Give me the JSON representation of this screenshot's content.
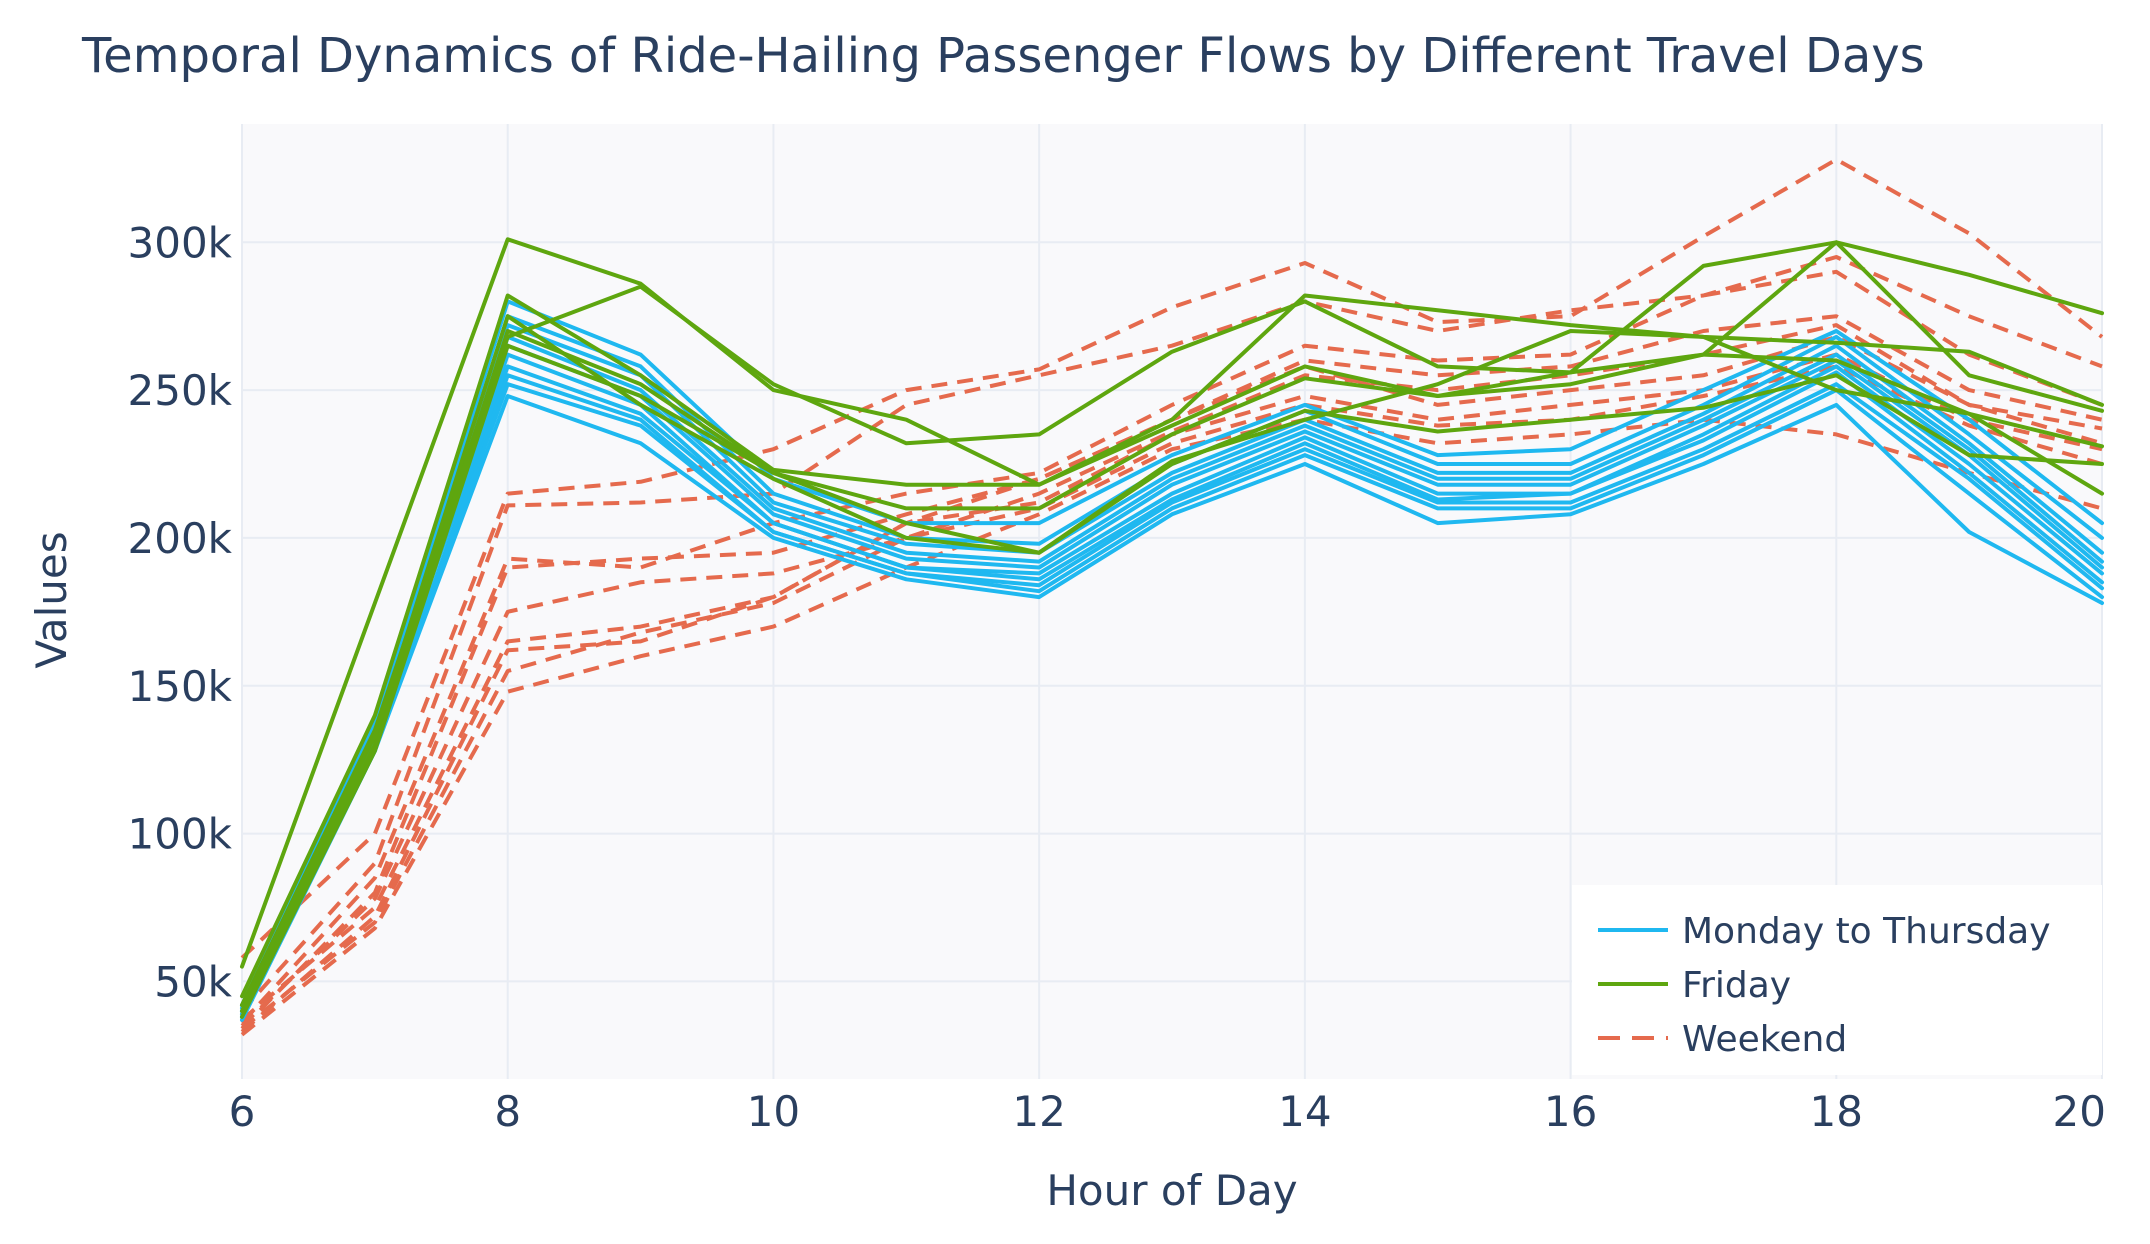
{
  "chart_data": {
    "type": "line",
    "title": "Temporal Dynamics of Ride-Hailing Passenger Flows by Different Travel Days",
    "xlabel": "Hour of Day",
    "ylabel": "Values",
    "xlim": [
      6,
      20
    ],
    "ylim": [
      17000,
      340000
    ],
    "grid": true,
    "legend_position": "bottom-right",
    "x_ticks": [
      6,
      8,
      10,
      12,
      14,
      16,
      18,
      20
    ],
    "x_tick_labels": [
      "6",
      "8",
      "10",
      "12",
      "14",
      "16",
      "18",
      "20"
    ],
    "y_ticks": [
      50000,
      100000,
      150000,
      200000,
      250000,
      300000
    ],
    "y_tick_labels": [
      "50k",
      "100k",
      "150k",
      "200k",
      "250k",
      "300k"
    ],
    "x": [
      6,
      7,
      8,
      9,
      10,
      11,
      12,
      13,
      14,
      15,
      16,
      17,
      18,
      19,
      20
    ],
    "groups": [
      {
        "name": "Monday to Thursday",
        "color": "#1fb8f0",
        "dash": "solid",
        "series": [
          [
            40000,
            135000,
            280000,
            262000,
            220000,
            205000,
            205000,
            228000,
            245000,
            228000,
            230000,
            250000,
            270000,
            240000,
            205000
          ],
          [
            38000,
            130000,
            275000,
            258000,
            215000,
            200000,
            198000,
            225000,
            243000,
            225000,
            225000,
            245000,
            268000,
            235000,
            200000
          ],
          [
            42000,
            138000,
            272000,
            255000,
            212000,
            198000,
            195000,
            222000,
            240000,
            222000,
            222000,
            242000,
            265000,
            232000,
            195000
          ],
          [
            37000,
            128000,
            268000,
            250000,
            210000,
            195000,
            192000,
            220000,
            238000,
            220000,
            220000,
            240000,
            262000,
            230000,
            192000
          ],
          [
            40000,
            132000,
            265000,
            248000,
            208000,
            193000,
            190000,
            218000,
            236000,
            218000,
            218000,
            238000,
            260000,
            228000,
            190000
          ],
          [
            39000,
            130000,
            262000,
            245000,
            205000,
            190000,
            188000,
            215000,
            234000,
            215000,
            215000,
            235000,
            258000,
            225000,
            188000
          ],
          [
            41000,
            133000,
            258000,
            242000,
            205000,
            190000,
            186000,
            213000,
            232000,
            213000,
            215000,
            233000,
            256000,
            222000,
            185000
          ],
          [
            38000,
            128000,
            255000,
            240000,
            202000,
            188000,
            184000,
            212000,
            230000,
            212000,
            212000,
            230000,
            252000,
            220000,
            183000
          ],
          [
            40000,
            130000,
            252000,
            238000,
            202000,
            188000,
            182000,
            210000,
            228000,
            210000,
            210000,
            228000,
            250000,
            215000,
            180000
          ],
          [
            39000,
            128000,
            248000,
            232000,
            200000,
            186000,
            180000,
            208000,
            225000,
            205000,
            208000,
            225000,
            245000,
            202000,
            178000
          ]
        ]
      },
      {
        "name": "Friday",
        "color": "#5ea60f",
        "dash": "solid",
        "series": [
          [
            55000,
            178000,
            301000,
            286000,
            250000,
            240000,
            218000,
            238000,
            258000,
            248000,
            256000,
            262000,
            300000,
            289000,
            276000
          ],
          [
            45000,
            140000,
            282000,
            255000,
            223000,
            218000,
            218000,
            240000,
            282000,
            277000,
            272000,
            268000,
            266000,
            263000,
            245000
          ],
          [
            42000,
            135000,
            268000,
            285000,
            252000,
            232000,
            235000,
            263000,
            280000,
            258000,
            256000,
            292000,
            300000,
            255000,
            243000
          ],
          [
            40000,
            130000,
            270000,
            252000,
            222000,
            210000,
            210000,
            235000,
            254000,
            248000,
            252000,
            262000,
            260000,
            242000,
            231000
          ],
          [
            38000,
            128000,
            265000,
            248000,
            222000,
            205000,
            195000,
            226000,
            240000,
            252000,
            270000,
            268000,
            250000,
            242000,
            215000
          ],
          [
            42000,
            133000,
            275000,
            245000,
            220000,
            200000,
            195000,
            225000,
            243000,
            236000,
            240000,
            244000,
            255000,
            228000,
            225000
          ]
        ]
      },
      {
        "name": "Weekend",
        "color": "#e56a4d",
        "dash": "dashed",
        "series": [
          [
            58000,
            100000,
            215000,
            219000,
            230000,
            250000,
            257000,
            278000,
            293000,
            273000,
            275000,
            302000,
            328000,
            303000,
            268000
          ],
          [
            40000,
            90000,
            211000,
            212000,
            215000,
            245000,
            255000,
            265000,
            280000,
            270000,
            277000,
            282000,
            295000,
            275000,
            258000
          ],
          [
            36000,
            85000,
            193000,
            190000,
            205000,
            215000,
            222000,
            245000,
            265000,
            260000,
            262000,
            282000,
            290000,
            262000,
            245000
          ],
          [
            34000,
            80000,
            190000,
            193000,
            195000,
            208000,
            220000,
            240000,
            260000,
            255000,
            258000,
            270000,
            275000,
            250000,
            240000
          ],
          [
            35000,
            78000,
            175000,
            185000,
            188000,
            200000,
            215000,
            236000,
            255000,
            250000,
            255000,
            262000,
            272000,
            245000,
            237000
          ],
          [
            37000,
            75000,
            165000,
            170000,
            180000,
            205000,
            220000,
            240000,
            258000,
            245000,
            250000,
            255000,
            268000,
            245000,
            232000
          ],
          [
            33000,
            72000,
            162000,
            165000,
            180000,
            205000,
            212000,
            235000,
            248000,
            240000,
            245000,
            250000,
            262000,
            240000,
            230000
          ],
          [
            34000,
            70000,
            155000,
            168000,
            178000,
            200000,
            210000,
            232000,
            245000,
            238000,
            240000,
            248000,
            258000,
            238000,
            225000
          ],
          [
            32000,
            68000,
            148000,
            160000,
            170000,
            190000,
            208000,
            230000,
            240000,
            232000,
            235000,
            240000,
            235000,
            222000,
            210000
          ]
        ]
      }
    ]
  }
}
